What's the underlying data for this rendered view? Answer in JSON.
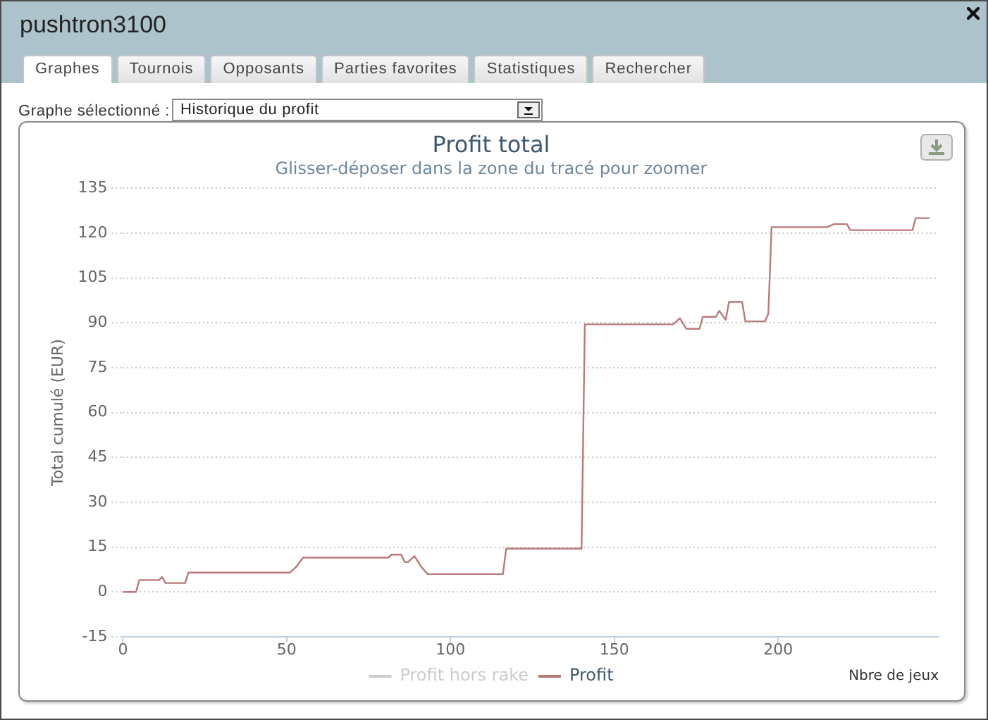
{
  "chart_data": {
    "type": "line",
    "title": "Profit total",
    "subtitle": "Glisser-déposer dans la zone du tracé pour zoomer",
    "xlabel": "Nbre de jeux",
    "ylabel": "Total cumulé (EUR)",
    "annotations": [
      "pushtron3100",
      "Graphes",
      "Tournois",
      "Opposants",
      "Parties favorites",
      "Statistiques",
      "Rechercher",
      "Graphe sélectionné :",
      "Historique du profit"
    ],
    "x": [
      0,
      4,
      5,
      11,
      12,
      13,
      19,
      20,
      51,
      53,
      55,
      81,
      82,
      85,
      86,
      87,
      89,
      91,
      93,
      116,
      117,
      140,
      141,
      168,
      170,
      172,
      176,
      177,
      181,
      182,
      184,
      185,
      189,
      190,
      196,
      197,
      198,
      215,
      217,
      221,
      222,
      241,
      242,
      246
    ],
    "series": [
      {
        "name": "Profit hors rake",
        "color": "#cccccc",
        "values": [
          null,
          null,
          null,
          null,
          null,
          null,
          null,
          null,
          null,
          null,
          null,
          null,
          null,
          null,
          null,
          null,
          null,
          null,
          null,
          null,
          null,
          null,
          null,
          null,
          null,
          null,
          null,
          null,
          null,
          null,
          null,
          null,
          null,
          null,
          null,
          null,
          null,
          null,
          null,
          null,
          null,
          null,
          null,
          null
        ]
      },
      {
        "name": "Profit",
        "color": "#b97a7a",
        "values": [
          0,
          0,
          4,
          4,
          5,
          3,
          3,
          6.5,
          6.5,
          8.5,
          11.5,
          11.5,
          12.5,
          12.5,
          10,
          10,
          12,
          8.5,
          6,
          6,
          14.5,
          14.5,
          89.5,
          89.5,
          91.5,
          88,
          88,
          92,
          92,
          94,
          91,
          97,
          97,
          90.5,
          90.5,
          93,
          122,
          122,
          123,
          123,
          121,
          121,
          125,
          125
        ]
      }
    ],
    "xlim": [
      0,
      249
    ],
    "xticks": [
      0,
      50,
      100,
      150,
      200
    ],
    "ylim": [
      -15,
      135
    ],
    "yticks": [
      -15,
      0,
      15,
      30,
      45,
      60,
      75,
      90,
      105,
      120,
      135
    ],
    "grid": "y",
    "legend": "bottom",
    "marker": "none"
  }
}
